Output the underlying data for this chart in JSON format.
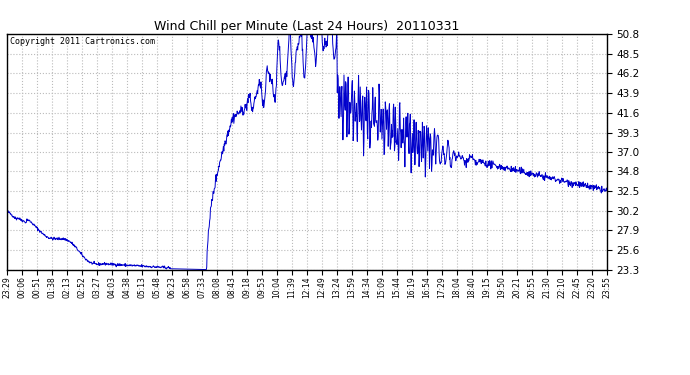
{
  "title": "Wind Chill per Minute (Last 24 Hours)  20110331",
  "copyright": "Copyright 2011 Cartronics.com",
  "line_color": "#0000cc",
  "background_color": "#ffffff",
  "grid_color": "#bbbbbb",
  "ylim": [
    23.3,
    50.8
  ],
  "yticks": [
    23.3,
    25.6,
    27.9,
    30.2,
    32.5,
    34.8,
    37.0,
    39.3,
    41.6,
    43.9,
    46.2,
    48.5,
    50.8
  ],
  "xtick_labels": [
    "23:29",
    "00:06",
    "00:51",
    "01:38",
    "02:13",
    "02:52",
    "03:27",
    "04:03",
    "04:38",
    "05:13",
    "05:48",
    "06:23",
    "06:58",
    "07:33",
    "08:08",
    "08:43",
    "09:18",
    "09:53",
    "10:04",
    "11:39",
    "12:14",
    "12:49",
    "13:24",
    "13:59",
    "14:34",
    "15:09",
    "15:44",
    "16:19",
    "16:54",
    "17:29",
    "18:04",
    "18:40",
    "19:15",
    "19:50",
    "20:21",
    "20:55",
    "21:30",
    "22:10",
    "22:45",
    "23:20",
    "23:55"
  ],
  "num_points": 1440,
  "seed": 42
}
